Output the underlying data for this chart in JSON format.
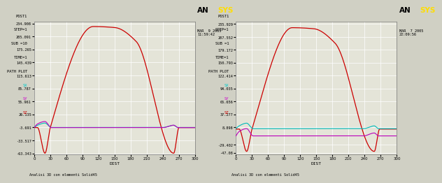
{
  "bg_color": "#d0d0c4",
  "plot_bg": "#e4e4d8",
  "grid_color": "#ffffff",
  "charts": [
    {
      "title_lines": [
        "POST1",
        "STEP=1",
        "SUB =10",
        "TIME=1",
        "PATH PLOT"
      ],
      "date_text": "MAR  9 2005\n11:59:42",
      "ytick_labels": [
        "234.908",
        "205.091",
        "175.265",
        "145.439",
        "115.613",
        "85.787",
        "55.961",
        "26.135",
        "-3.691",
        "-33.517",
        "-63.343"
      ],
      "ytick_vals": [
        234.908,
        205.091,
        175.265,
        145.439,
        115.613,
        85.787,
        55.961,
        26.135,
        -3.691,
        -33.517,
        -63.343
      ],
      "xlabel": "DIST",
      "xlim": [
        0,
        300
      ],
      "xticks": [
        0,
        30,
        60,
        90,
        120,
        150,
        180,
        210,
        240,
        270,
        300
      ],
      "ylim": [
        -65.0,
        240.0
      ],
      "footer": "Analisi 3D con elementi Solid45",
      "legend_labels": [
        "SX",
        "SY",
        "SZ"
      ],
      "legend_colors": [
        "#00cccc",
        "#cc00cc",
        "#cc0000"
      ],
      "red_peak": 228.0,
      "red_peak_x": 110,
      "red_bottom": -63.0,
      "red_end": -4.0,
      "sx_flat": -3.8,
      "sy_flat": -4.2,
      "sx_spike": 10.0,
      "sy_spike": 14.0,
      "spike_x1": 20,
      "spike_x2": 260
    },
    {
      "title_lines": [
        "POST1",
        "STEP=1",
        "SUB =1",
        "TIME=1",
        "PATH PLOT"
      ],
      "date_text": "MAR  7 2005\n22:09:56",
      "ytick_labels": [
        "235.929",
        "207.552",
        "179.172",
        "150.793",
        "122.414",
        "94.035",
        "65.656",
        "37.277",
        "8.898",
        "-29.402",
        "-47.08"
      ],
      "ytick_vals": [
        235.929,
        207.552,
        179.172,
        150.793,
        122.414,
        94.035,
        65.656,
        37.277,
        8.898,
        -29.402,
        -47.08
      ],
      "xlabel": "DIST",
      "xlim": [
        0,
        300
      ],
      "xticks": [
        0,
        30,
        60,
        90,
        120,
        150,
        180,
        210,
        240,
        270,
        300
      ],
      "ylim": [
        -50.0,
        242.0
      ],
      "footer": "Analisi 3D con elementi Solid45",
      "legend_labels": [
        "SX",
        "SY",
        "SZ"
      ],
      "legend_colors": [
        "#00cccc",
        "#cc00cc",
        "#cc0000"
      ],
      "red_peak": 228.0,
      "red_peak_x": 105,
      "red_bottom": -44.0,
      "red_end": 5.0,
      "sx_flat": 6.0,
      "sy_flat": -10.0,
      "sx_spike": 12.0,
      "sy_spike": 16.0,
      "spike_x1": 20,
      "spike_x2": 258
    }
  ]
}
